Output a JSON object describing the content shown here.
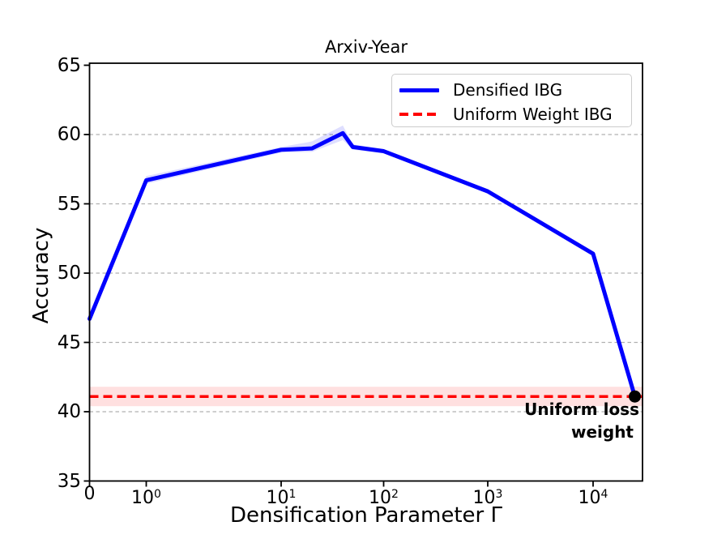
{
  "chart_data": {
    "type": "line",
    "title": "Arxiv-Year",
    "xlabel": "Densification Parameter Γ",
    "ylabel": "Accuracy",
    "x_scale": "symlog",
    "ylim": [
      35,
      65
    ],
    "y_ticks": [
      "35",
      "40",
      "45",
      "50",
      "55",
      "60",
      "65"
    ],
    "x_ticks": [
      {
        "text": "0",
        "value": 0
      },
      {
        "base": "10",
        "exp": "0",
        "value": 1
      },
      {
        "base": "10",
        "exp": "1",
        "value": 10
      },
      {
        "base": "10",
        "exp": "2",
        "value": 100
      },
      {
        "base": "10",
        "exp": "3",
        "value": 1000
      },
      {
        "base": "10",
        "exp": "4",
        "value": 10000
      }
    ],
    "grid": {
      "axis": "y",
      "style": "dashed",
      "color": "#b0b0b0"
    },
    "legend": {
      "position": "upper right",
      "items": [
        {
          "label": "Densified IBG",
          "color": "#0000ff",
          "linestyle": "solid"
        },
        {
          "label": "Uniform Weight IBG",
          "color": "#ff0000",
          "linestyle": "dashed"
        }
      ]
    },
    "series": [
      {
        "name": "Densified IBG",
        "kind": "line",
        "color": "#0000ff",
        "x": [
          0,
          1,
          10,
          20,
          40,
          50,
          100,
          1000,
          10000,
          25000
        ],
        "y": [
          46.7,
          56.7,
          58.9,
          59.0,
          60.1,
          59.1,
          58.8,
          55.9,
          51.4,
          41.1
        ],
        "band_upper": [
          46.95,
          57.0,
          59.1,
          59.5,
          60.65,
          59.3,
          58.95,
          56.05,
          51.55,
          41.3
        ],
        "band_lower": [
          46.45,
          56.45,
          58.7,
          58.75,
          59.6,
          58.9,
          58.65,
          55.75,
          51.25,
          40.9
        ],
        "band_color": "rgba(0,0,255,0.13)"
      },
      {
        "name": "Uniform Weight IBG",
        "kind": "hline",
        "color": "#ff0000",
        "y": 41.1,
        "band": [
          40.4,
          41.8
        ],
        "band_color": "rgba(255,0,0,0.12)"
      }
    ],
    "annotation": {
      "lines": [
        "Uniform loss",
        "weight"
      ]
    },
    "end_marker": {
      "x": 25000,
      "y": 41.1,
      "color": "#000000"
    }
  }
}
